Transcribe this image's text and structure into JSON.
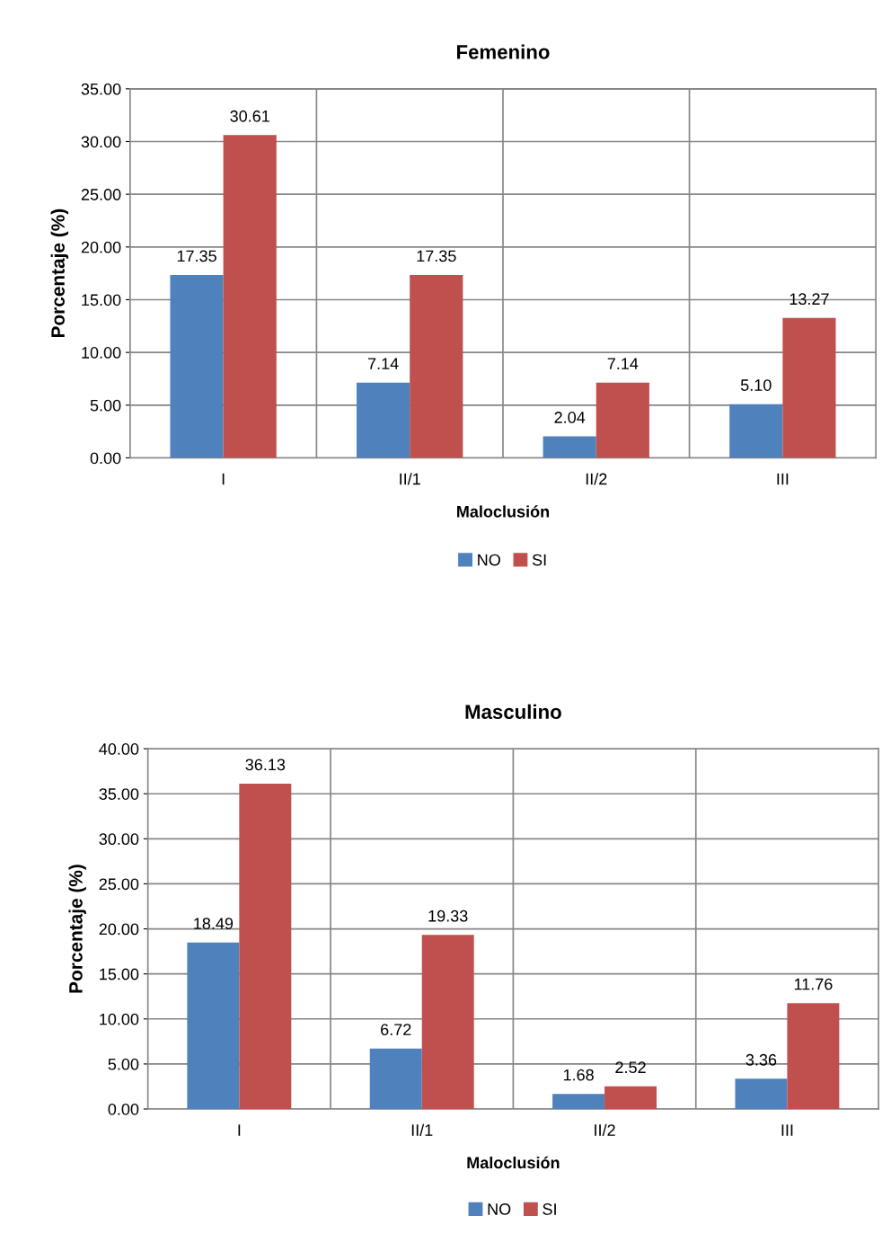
{
  "chart_data": [
    {
      "type": "bar",
      "title": "Femenino",
      "xlabel": "Maloclusión",
      "ylabel": "Porcentaje (%)",
      "categories": [
        "I",
        "II/1",
        "II/2",
        "III"
      ],
      "series": [
        {
          "name": "NO",
          "color": "#4f81bd",
          "values": [
            17.35,
            7.14,
            2.04,
            5.1
          ],
          "value_labels": [
            "17.35",
            "7.14",
            "2.04",
            "5.10"
          ]
        },
        {
          "name": "SI",
          "color": "#c0504d",
          "values": [
            30.61,
            17.35,
            7.14,
            13.27
          ],
          "value_labels": [
            "30.61",
            "17.35",
            "7.14",
            "13.27"
          ]
        }
      ],
      "ylim": [
        0,
        35
      ],
      "yticks": [
        {
          "value": 0,
          "label": "0.00"
        },
        {
          "value": 5,
          "label": "5.00"
        },
        {
          "value": 10,
          "label": "10.00"
        },
        {
          "value": 15,
          "label": "15.00"
        },
        {
          "value": 20,
          "label": "20.00"
        },
        {
          "value": 25,
          "label": "25.00"
        },
        {
          "value": 30,
          "label": "30.00"
        },
        {
          "value": 35,
          "label": "35.00"
        }
      ],
      "grid": true,
      "legend": "bottom"
    },
    {
      "type": "bar",
      "title": "Masculino",
      "xlabel": "Maloclusión",
      "ylabel": "Porcentaje (%)",
      "categories": [
        "I",
        "II/1",
        "II/2",
        "III"
      ],
      "series": [
        {
          "name": "NO",
          "color": "#4f81bd",
          "values": [
            18.49,
            6.72,
            1.68,
            3.36
          ],
          "value_labels": [
            "18.49",
            "6.72",
            "1.68",
            "3.36"
          ]
        },
        {
          "name": "SI",
          "color": "#c0504d",
          "values": [
            36.13,
            19.33,
            2.52,
            11.76
          ],
          "value_labels": [
            "36.13",
            "19.33",
            "2.52",
            "11.76"
          ]
        }
      ],
      "ylim": [
        0,
        40
      ],
      "yticks": [
        {
          "value": 0,
          "label": "0.00"
        },
        {
          "value": 5,
          "label": "5.00"
        },
        {
          "value": 10,
          "label": "10.00"
        },
        {
          "value": 15,
          "label": "15.00"
        },
        {
          "value": 20,
          "label": "20.00"
        },
        {
          "value": 25,
          "label": "25.00"
        },
        {
          "value": 30,
          "label": "30.00"
        },
        {
          "value": 35,
          "label": "35.00"
        },
        {
          "value": 40,
          "label": "40.00"
        }
      ],
      "grid": true,
      "legend": "bottom"
    }
  ]
}
